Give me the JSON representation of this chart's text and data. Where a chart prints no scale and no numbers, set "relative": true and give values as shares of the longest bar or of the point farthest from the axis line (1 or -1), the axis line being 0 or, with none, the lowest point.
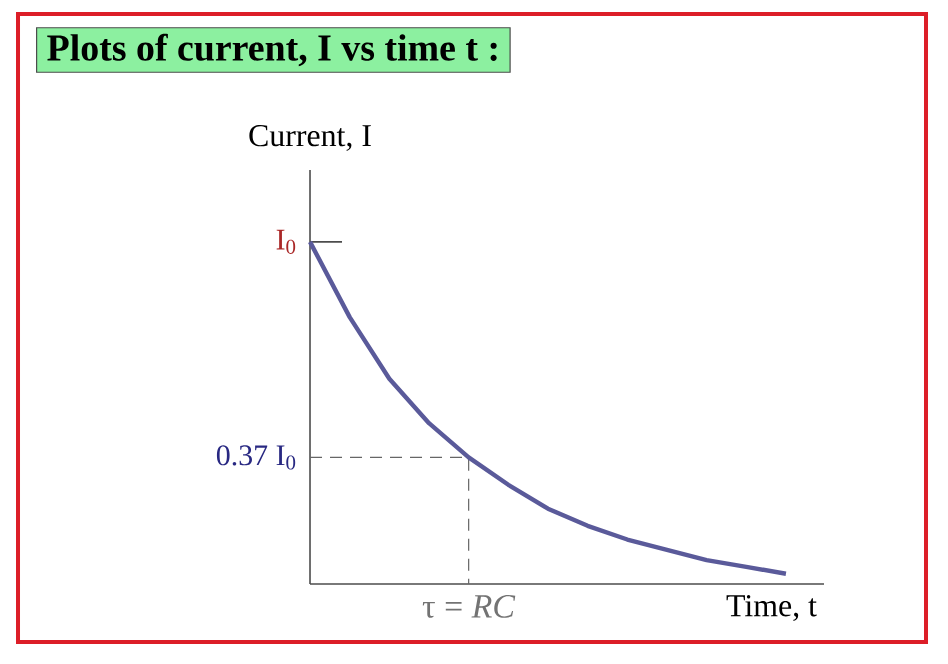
{
  "chart_data": {
    "type": "line",
    "title": "**Plots of current, I vs time t :**",
    "xlabel": "Time, t",
    "ylabel": "Current, I",
    "relative": true,
    "categories": [
      null,
      null,
      null,
      null,
      null,
      null,
      null,
      null,
      null,
      null,
      null,
      null,
      null
    ],
    "series": [
      {
        "color": "#5a5a9a",
        "values": [
          1,
          0.78,
          0.6,
          0.47,
          0.37,
          0.29,
          0.22,
          0.17,
          0.13,
          0.1,
          0.07,
          0.05,
          0.03
        ]
      }
    ],
    "annotations": [
      "I$_{0}$",
      "τ = *RC*"
    ],
    "ref_lines": [
      {
        "axis": "y",
        "value": 0.37,
        "label": "0.37 I$_{0}$",
        "line_style": "dashed"
      }
    ],
    "marker": "none",
    "line_style": "solid"
  }
}
